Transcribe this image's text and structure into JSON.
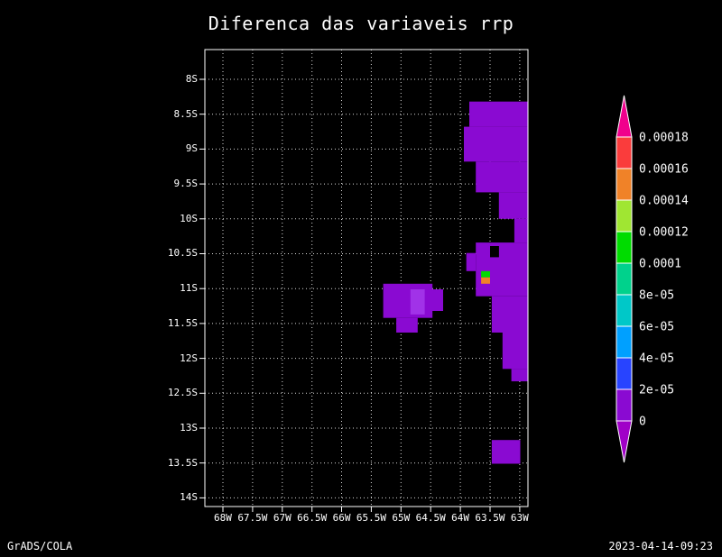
{
  "title": "Diferenca das variaveis rrp",
  "footer": {
    "left": "GrADS/COLA",
    "right": "2023-04-14-09:23"
  },
  "colors": {
    "background": "#000000",
    "foreground": "#ffffff"
  },
  "chart_data": {
    "type": "heatmap",
    "title": "Diferenca das variaveis rrp",
    "xlabel": "",
    "ylabel": "",
    "grid": "dotted",
    "x_range": [
      -68.304,
      -62.861
    ],
    "y_range": [
      -7.574,
      -14.124
    ],
    "x_ticks": {
      "values": [
        -68,
        -67.5,
        -67,
        -66.5,
        -66,
        -65.5,
        -65,
        -64.5,
        -64,
        -63.5,
        -63
      ],
      "labels": [
        "68W",
        "67.5W",
        "67W",
        "66.5W",
        "66W",
        "65.5W",
        "65W",
        "64.5W",
        "64W",
        "63.5W",
        "63W"
      ]
    },
    "y_ticks": {
      "values": [
        -8,
        -8.5,
        -9,
        -9.5,
        -10,
        -10.5,
        -11,
        -11.5,
        -12,
        -12.5,
        -13,
        -13.5,
        -14
      ],
      "labels": [
        "8S",
        "8.5S",
        "9S",
        "9.5S",
        "10S",
        "10.5S",
        "11S",
        "11.5S",
        "12S",
        "12.5S",
        "13S",
        "13.5S",
        "14S"
      ]
    },
    "colorbar": {
      "position": "right",
      "labels_top_to_bottom": [
        "0.00018",
        "0.00016",
        "0.00014",
        "0.00012",
        "0.0001",
        "8e-05",
        "6e-05",
        "4e-05",
        "2e-05",
        "0"
      ],
      "band_colors_top_to_bottom": [
        "#fa3c3c",
        "#f08228",
        "#a0e632",
        "#00dc00",
        "#00d28c",
        "#00c8c8",
        "#00a0ff",
        "#2844ff",
        "#8a0ad2"
      ],
      "arrow_top_color": "#f0008c",
      "arrow_bottom_color": "#a000c8"
    },
    "patches": [
      {
        "lon": [
          -63.85,
          -62.86
        ],
        "lat": [
          -8.68,
          -8.32
        ],
        "value": "0 to 2e-05",
        "color": "#8a0ad2"
      },
      {
        "lon": [
          -63.94,
          -62.86
        ],
        "lat": [
          -9.18,
          -8.68
        ],
        "value": "0 to 2e-05",
        "color": "#8a0ad2"
      },
      {
        "lon": [
          -63.74,
          -62.86
        ],
        "lat": [
          -9.62,
          -9.18
        ],
        "value": "0 to 2e-05",
        "color": "#8a0ad2"
      },
      {
        "lon": [
          -63.35,
          -62.86
        ],
        "lat": [
          -10.0,
          -9.62
        ],
        "value": "0 to 2e-05",
        "color": "#8a0ad2"
      },
      {
        "lon": [
          -63.09,
          -62.86
        ],
        "lat": [
          -10.34,
          -10.0
        ],
        "value": "0 to 2e-05",
        "color": "#8a0ad2"
      },
      {
        "lon": [
          -63.74,
          -62.86
        ],
        "lat": [
          -11.11,
          -10.34
        ],
        "value": "0 to 2e-05",
        "color": "#8a0ad2"
      },
      {
        "lon": [
          -63.9,
          -63.74
        ],
        "lat": [
          -10.75,
          -10.49
        ],
        "value": "0 to 2e-05",
        "color": "#8a0ad2"
      },
      {
        "lon": [
          -63.47,
          -62.86
        ],
        "lat": [
          -11.63,
          -11.11
        ],
        "value": "0 to 2e-05",
        "color": "#8a0ad2"
      },
      {
        "lon": [
          -63.29,
          -62.86
        ],
        "lat": [
          -12.15,
          -11.63
        ],
        "value": "0 to 2e-05",
        "color": "#8a0ad2"
      },
      {
        "lon": [
          -63.14,
          -62.86
        ],
        "lat": [
          -12.33,
          -12.15
        ],
        "value": "0 to 2e-05",
        "color": "#8a0ad2"
      },
      {
        "lon": [
          -63.47,
          -62.99
        ],
        "lat": [
          -13.51,
          -13.17
        ],
        "value": "0 to 2e-05",
        "color": "#8a0ad2"
      },
      {
        "lon": [
          -65.3,
          -64.47
        ],
        "lat": [
          -11.42,
          -10.93
        ],
        "value": "0 to 2e-05",
        "color": "#8a0ad2"
      },
      {
        "lon": [
          -64.5,
          -64.29
        ],
        "lat": [
          -11.32,
          -11.01
        ],
        "value": "0 to 2e-05",
        "color": "#8a0ad2"
      },
      {
        "lon": [
          -65.08,
          -64.72
        ],
        "lat": [
          -11.63,
          -11.42
        ],
        "value": "0 to 2e-05",
        "color": "#8a0ad2"
      },
      {
        "lon": [
          -64.84,
          -64.6
        ],
        "lat": [
          -11.37,
          -11.01
        ],
        "value": "0 to 2e-05",
        "color": "#a132e8"
      },
      {
        "lon": [
          -63.5,
          -63.35
        ],
        "lat": [
          -10.55,
          -10.39
        ],
        "value": "masked",
        "color": "#000000"
      },
      {
        "lon": [
          -63.65,
          -63.5
        ],
        "lat": [
          -10.84,
          -10.75
        ],
        "value": "0.0001 to 0.00012",
        "color": "#00dc00"
      },
      {
        "lon": [
          -63.65,
          -63.5
        ],
        "lat": [
          -10.93,
          -10.84
        ],
        "value": "0.00014 to 0.00016",
        "color": "#f08228"
      }
    ]
  }
}
